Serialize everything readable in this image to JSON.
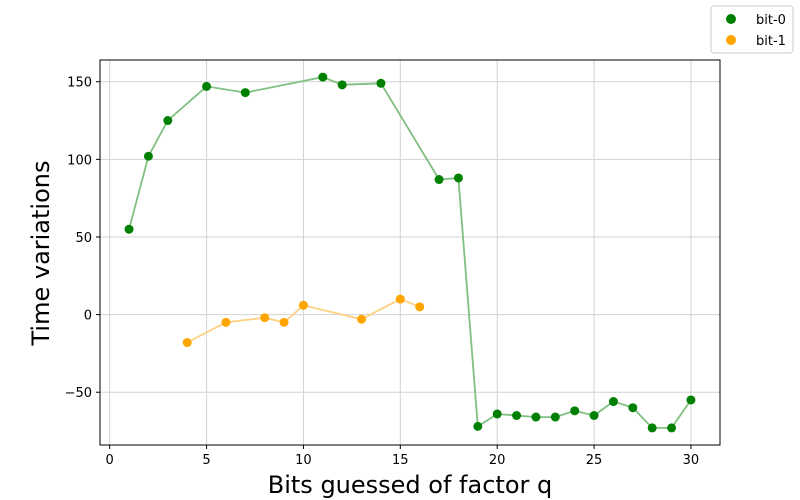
{
  "chart_data": {
    "type": "scatter",
    "xlabel": "Bits guessed of factor q",
    "ylabel": "Time variations",
    "xlim": [
      -0.5,
      31.5
    ],
    "ylim": [
      -84,
      164
    ],
    "xticks": [
      0,
      5,
      10,
      15,
      20,
      25,
      30
    ],
    "yticks": [
      -50,
      0,
      50,
      100,
      150
    ],
    "grid": true,
    "legend_position": "top-right",
    "series": [
      {
        "name": "bit-0",
        "color": "#008000",
        "line_color": "#80c080",
        "x": [
          1,
          2,
          3,
          5,
          7,
          11,
          12,
          14,
          17,
          18,
          19,
          20,
          21,
          22,
          23,
          24,
          25,
          26,
          27,
          28,
          29,
          30
        ],
        "y": [
          55,
          102,
          125,
          147,
          143,
          153,
          148,
          149,
          87,
          88,
          -72,
          -64,
          -65,
          -66,
          -66,
          -62,
          -65,
          -56,
          -60,
          -73,
          -73,
          -55
        ]
      },
      {
        "name": "bit-1",
        "color": "#ffa500",
        "line_color": "#ffd080",
        "x": [
          4,
          6,
          8,
          9,
          10,
          13,
          15,
          16
        ],
        "y": [
          -18,
          -5,
          -2,
          -5,
          6,
          -3,
          10,
          5
        ]
      }
    ]
  }
}
